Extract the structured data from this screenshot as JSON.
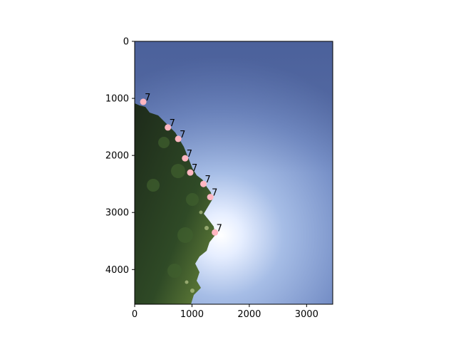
{
  "chart_data": {
    "type": "scatter",
    "title": "",
    "xlabel": "",
    "ylabel": "",
    "xlim": [
      0,
      3456
    ],
    "ylim": [
      4608,
      0
    ],
    "y_inverted": true,
    "grid": false,
    "legend": "none",
    "background": "photo of sky with tree foliage along the left edge",
    "x_ticks": [
      {
        "value": 0,
        "label": "0"
      },
      {
        "value": 1000,
        "label": "1000"
      },
      {
        "value": 2000,
        "label": "2000"
      },
      {
        "value": 3000,
        "label": "3000"
      }
    ],
    "y_ticks": [
      {
        "value": 0,
        "label": "0"
      },
      {
        "value": 1000,
        "label": "1000"
      },
      {
        "value": 2000,
        "label": "2000"
      },
      {
        "value": 3000,
        "label": "3000"
      },
      {
        "value": 4000,
        "label": "4000"
      }
    ],
    "marker_color": "#ffb6c1",
    "points": [
      {
        "x": 150,
        "y": 1060,
        "label": "7"
      },
      {
        "x": 580,
        "y": 1510,
        "label": "7"
      },
      {
        "x": 760,
        "y": 1710,
        "label": "7"
      },
      {
        "x": 880,
        "y": 2050,
        "label": "7"
      },
      {
        "x": 970,
        "y": 2300,
        "label": "7"
      },
      {
        "x": 1200,
        "y": 2500,
        "label": "7"
      },
      {
        "x": 1320,
        "y": 2730,
        "label": "7"
      },
      {
        "x": 1400,
        "y": 3350,
        "label": "7"
      }
    ]
  }
}
